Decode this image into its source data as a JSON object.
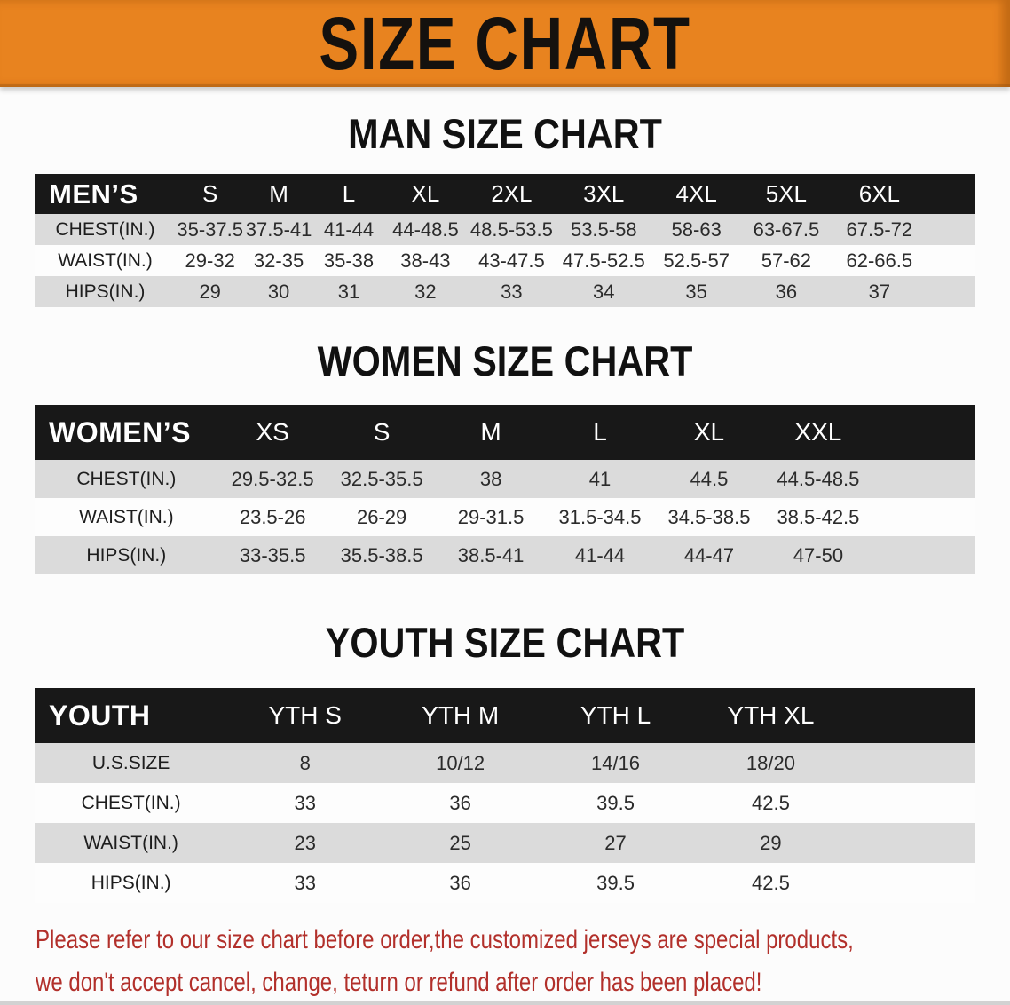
{
  "banner": {
    "title": "SIZE CHART"
  },
  "colors": {
    "banner_bg": "#E8831F",
    "header_bg": "#181818",
    "row_alt_bg": "#DBDBDB",
    "footer_text": "#B2302B"
  },
  "sections": [
    {
      "heading": "MAN SIZE CHART",
      "group_label": "MEN’S",
      "columns": [
        "S",
        "M",
        "L",
        "XL",
        "2XL",
        "3XL",
        "4XL",
        "5XL",
        "6XL"
      ],
      "rows": [
        {
          "label": "CHEST(IN.)",
          "values": [
            "35-37.5",
            "37.5-41",
            "41-44",
            "44-48.5",
            "48.5-53.5",
            "53.5-58",
            "58-63",
            "63-67.5",
            "67.5-72"
          ]
        },
        {
          "label": "WAIST(IN.)",
          "values": [
            "29-32",
            "32-35",
            "35-38",
            "38-43",
            "43-47.5",
            "47.5-52.5",
            "52.5-57",
            "57-62",
            "62-66.5"
          ]
        },
        {
          "label": "HIPS(IN.)",
          "values": [
            "29",
            "30",
            "31",
            "32",
            "33",
            "34",
            "35",
            "36",
            "37"
          ]
        }
      ]
    },
    {
      "heading": "WOMEN SIZE CHART",
      "group_label": "WOMEN’S",
      "columns": [
        "XS",
        "S",
        "M",
        "L",
        "XL",
        "XXL"
      ],
      "rows": [
        {
          "label": "CHEST(IN.)",
          "values": [
            "29.5-32.5",
            "32.5-35.5",
            "38",
            "41",
            "44.5",
            "44.5-48.5"
          ]
        },
        {
          "label": "WAIST(IN.)",
          "values": [
            "23.5-26",
            "26-29",
            "29-31.5",
            "31.5-34.5",
            "34.5-38.5",
            "38.5-42.5"
          ]
        },
        {
          "label": "HIPS(IN.)",
          "values": [
            "33-35.5",
            "35.5-38.5",
            "38.5-41",
            "41-44",
            "44-47",
            "47-50"
          ]
        }
      ]
    },
    {
      "heading": "YOUTH SIZE CHART",
      "group_label": "YOUTH",
      "columns": [
        "YTH S",
        "YTH M",
        "YTH L",
        "YTH XL"
      ],
      "rows": [
        {
          "label": "U.S.SIZE",
          "values": [
            "8",
            "10/12",
            "14/16",
            "18/20"
          ]
        },
        {
          "label": "CHEST(IN.)",
          "values": [
            "33",
            "36",
            "39.5",
            "42.5"
          ]
        },
        {
          "label": "WAIST(IN.)",
          "values": [
            "23",
            "25",
            "27",
            "29"
          ]
        },
        {
          "label": "HIPS(IN.)",
          "values": [
            "33",
            "36",
            "39.5",
            "42.5"
          ]
        }
      ]
    }
  ],
  "footer": {
    "line1": "Please refer to our size chart before order,the customized jerseys are special products,",
    "line2": "we don't accept cancel, change, teturn or refund after order has been placed!"
  }
}
